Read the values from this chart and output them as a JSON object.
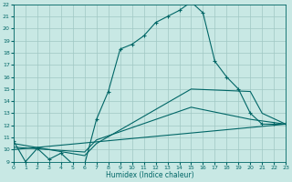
{
  "xlabel": "Humidex (Indice chaleur)",
  "xlim": [
    0,
    23
  ],
  "ylim": [
    9,
    22
  ],
  "yticks": [
    9,
    10,
    11,
    12,
    13,
    14,
    15,
    16,
    17,
    18,
    19,
    20,
    21,
    22
  ],
  "xticks": [
    0,
    1,
    2,
    3,
    4,
    5,
    6,
    7,
    8,
    9,
    10,
    11,
    12,
    13,
    14,
    15,
    16,
    17,
    18,
    19,
    20,
    21,
    22,
    23
  ],
  "bg_color": "#c8e8e4",
  "line_color": "#006666",
  "grid_color": "#a0c8c4",
  "series_main": {
    "x": [
      0,
      1,
      2,
      3,
      4,
      5,
      6,
      7,
      8,
      9,
      10,
      11,
      12,
      13,
      14,
      15,
      16,
      17,
      18,
      19,
      20,
      21,
      22,
      23
    ],
    "y": [
      10.7,
      9.0,
      10.1,
      9.2,
      9.7,
      8.8,
      8.8,
      12.5,
      14.8,
      18.3,
      18.7,
      19.4,
      20.5,
      21.0,
      21.5,
      22.2,
      21.3,
      17.3,
      16.0,
      15.0,
      13.0,
      12.1,
      12.1,
      12.1
    ]
  },
  "series_lines": [
    {
      "x": [
        0,
        6,
        7,
        15,
        20,
        21,
        23
      ],
      "y": [
        10.5,
        9.5,
        10.5,
        15.0,
        14.8,
        13.0,
        12.1
      ]
    },
    {
      "x": [
        0,
        6,
        7,
        15,
        20,
        23
      ],
      "y": [
        10.2,
        9.8,
        10.8,
        13.5,
        12.5,
        12.1
      ]
    },
    {
      "x": [
        0,
        23
      ],
      "y": [
        10.0,
        12.1
      ]
    }
  ]
}
